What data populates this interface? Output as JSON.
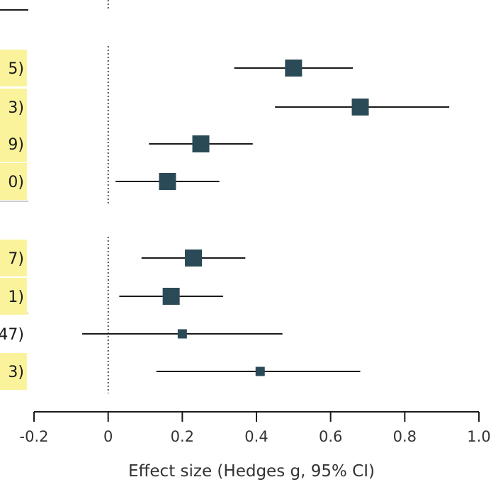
{
  "colors": {
    "marker": "#2b4a57",
    "ci_line": "#1a1a1a",
    "label_highlight": "#fbf39c",
    "axis": "#1a1a1a",
    "reference_line": "#1a1a1a",
    "text": "#333333"
  },
  "chart_data": {
    "type": "scatter",
    "subtype": "forest-plot",
    "title": "",
    "xlabel": "Effect size (Hedges g, 95% CI)",
    "ylabel": "",
    "xlim": [
      -0.2,
      1.0
    ],
    "x_ticks": [
      -0.2,
      0,
      0.2,
      0.4,
      0.6,
      0.8,
      1.0
    ],
    "x_tick_labels": [
      "-0.2",
      "0",
      "0.2",
      "0.4",
      "0.6",
      "0.8",
      "1.0"
    ],
    "reference_line": 0,
    "reference_style": "dotted",
    "grid": false,
    "groups": [
      {
        "rows": [
          {
            "label_fragment": "5)",
            "highlighted": true,
            "estimate": 0.5,
            "ci_low": 0.34,
            "ci_high": 0.66,
            "marker_size": "large"
          },
          {
            "label_fragment": "3)",
            "highlighted": true,
            "estimate": 0.68,
            "ci_low": 0.45,
            "ci_high": 0.92,
            "marker_size": "large"
          },
          {
            "label_fragment": "9)",
            "highlighted": true,
            "estimate": 0.25,
            "ci_low": 0.11,
            "ci_high": 0.39,
            "marker_size": "large"
          },
          {
            "label_fragment": "0)",
            "highlighted": true,
            "estimate": 0.16,
            "ci_low": 0.02,
            "ci_high": 0.3,
            "marker_size": "large"
          }
        ]
      },
      {
        "rows": [
          {
            "label_fragment": "7)",
            "highlighted": true,
            "estimate": 0.23,
            "ci_low": 0.09,
            "ci_high": 0.37,
            "marker_size": "large"
          },
          {
            "label_fragment": "1)",
            "highlighted": true,
            "estimate": 0.17,
            "ci_low": 0.03,
            "ci_high": 0.31,
            "marker_size": "large"
          },
          {
            "label_fragment": "47)",
            "highlighted": false,
            "estimate": 0.2,
            "ci_low": -0.07,
            "ci_high": 0.47,
            "marker_size": "small"
          },
          {
            "label_fragment": "3)",
            "highlighted": true,
            "estimate": 0.41,
            "ci_low": 0.13,
            "ci_high": 0.68,
            "marker_size": "small"
          }
        ]
      }
    ]
  }
}
